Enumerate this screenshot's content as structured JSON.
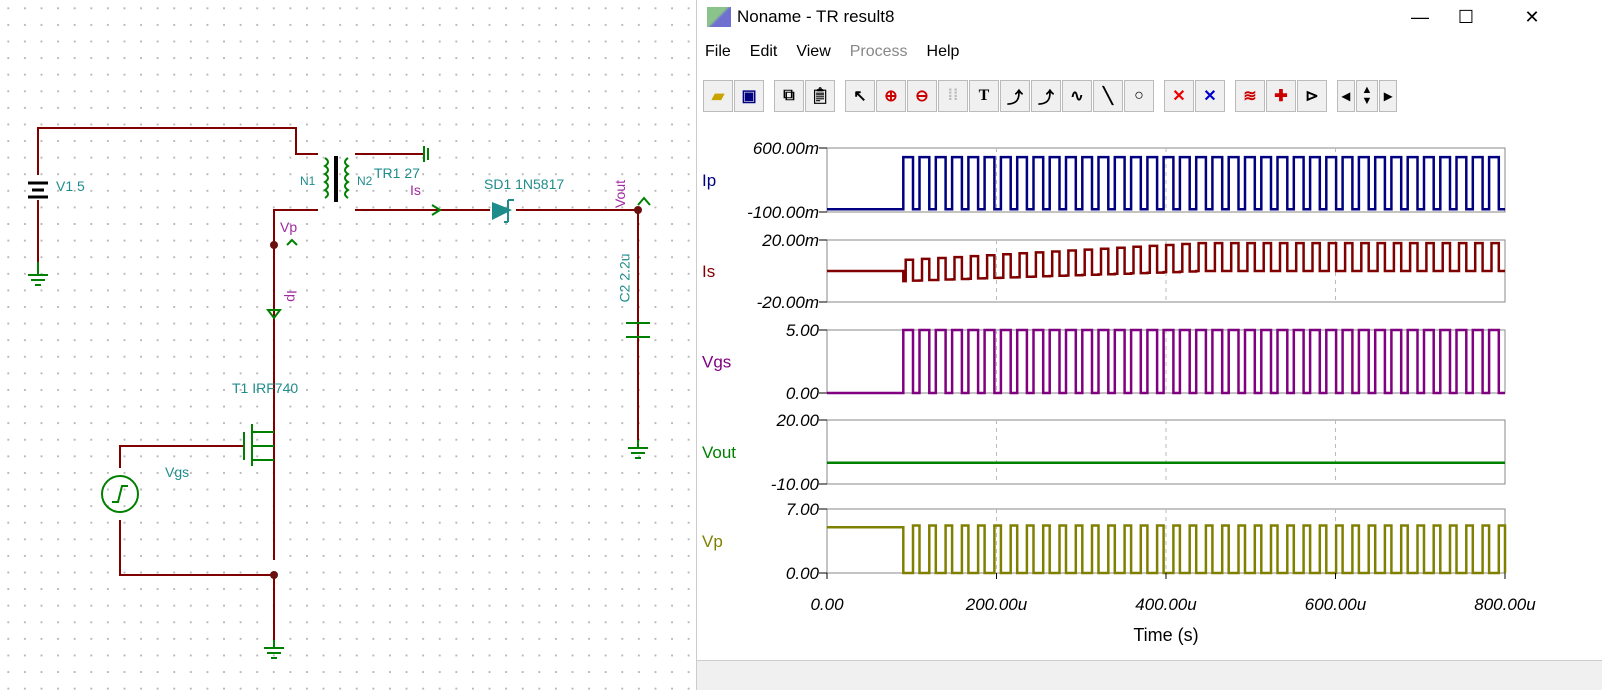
{
  "schematic": {
    "labels": {
      "v1": "V1 5",
      "tr1": "TR1 27",
      "n1": "N1",
      "n2": "N2",
      "sd1": "SD1 1N5817",
      "c2": "C2 2.2u",
      "t1": "T1 IRF740",
      "vgs_src": "Vgs"
    },
    "probes": {
      "vp": "Vp",
      "ip": "Ip",
      "is": "Is",
      "vout": "Vout"
    },
    "colors": {
      "wire": "#800000",
      "pin": "#008000",
      "label": "#1f8c8c",
      "probe": "#a02aa0"
    }
  },
  "window": {
    "title": "Noname - TR result8",
    "controls": {
      "minimize": "—",
      "maximize": "☐",
      "close": "✕"
    },
    "menu": [
      "File",
      "Edit",
      "View",
      "Process",
      "Help"
    ],
    "toolbar": [
      "open-folder",
      "save",
      "copy",
      "paste",
      "pointer",
      "zoom-in",
      "zoom-out-100",
      "grid",
      "text",
      "trace-annotate",
      "trace-query",
      "trace-formula",
      "line",
      "circle",
      "cursor-a",
      "cursor-b",
      "add-curve",
      "add-probe",
      "marker",
      "scroll-left",
      "scroll-up-down",
      "scroll-right"
    ]
  },
  "chart_data": {
    "type": "line",
    "xlabel": "Time (s)",
    "xlim": [
      0,
      0.0008
    ],
    "xticks": [
      "0.00",
      "200.00u",
      "400.00u",
      "600.00u",
      "800.00u"
    ],
    "grid": true,
    "switching": {
      "start": 9e-05,
      "period": 1.92e-05,
      "duty": 0.6
    },
    "series": [
      {
        "name": "Ip",
        "color": "#000080",
        "ylim": [
          -0.1,
          0.6
        ],
        "yticks": [
          "600.00m",
          "-100.00m"
        ],
        "low": -0.07,
        "high": 0.5
      },
      {
        "name": "Is",
        "color": "#800000",
        "ylim": [
          -0.02,
          0.02
        ],
        "yticks": [
          "20.00m",
          "-20.00m"
        ],
        "low": 0,
        "pulse_start": -0.0065,
        "pulse_end": 0.018
      },
      {
        "name": "Vgs",
        "color": "#800080",
        "ylim": [
          0,
          5
        ],
        "yticks": [
          "5.00",
          "0.00"
        ],
        "low": 0,
        "high": 5
      },
      {
        "name": "Vout",
        "color": "#008000",
        "ylim": [
          -10,
          20
        ],
        "yticks": [
          "20.00",
          "-10.00"
        ],
        "value": 0
      },
      {
        "name": "Vp",
        "color": "#808000",
        "ylim": [
          0,
          7
        ],
        "yticks": [
          "7.00",
          "0.00"
        ],
        "initial": 5,
        "low": 0,
        "high": 5.2
      }
    ]
  }
}
